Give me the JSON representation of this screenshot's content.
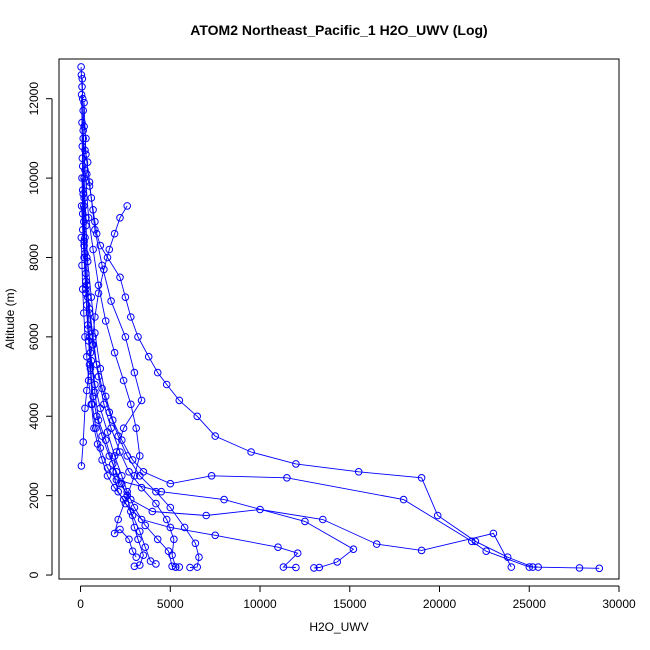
{
  "chart_data": {
    "type": "scatter",
    "title": "ATOM2 Northeast_Pacific_1 H2O_UWV (Log)",
    "xlabel": "H2O_UWV",
    "ylabel": "Altitude (m)",
    "xlim": [
      -1200,
      30000
    ],
    "ylim": [
      -100,
      13000
    ],
    "xticks": [
      0,
      5000,
      10000,
      15000,
      20000,
      25000,
      30000
    ],
    "yticks": [
      0,
      2000,
      4000,
      6000,
      8000,
      10000,
      12000
    ],
    "series": [
      {
        "values": [
          [
            30,
            12800
          ],
          [
            50,
            12600
          ],
          [
            80,
            12300
          ],
          [
            120,
            12000
          ],
          [
            150,
            11700
          ],
          [
            200,
            11300
          ],
          [
            300,
            11000
          ],
          [
            250,
            10700
          ],
          [
            400,
            10400
          ],
          [
            350,
            10100
          ],
          [
            500,
            9800
          ],
          [
            600,
            9500
          ],
          [
            700,
            9200
          ],
          [
            800,
            8900
          ],
          [
            900,
            8600
          ],
          [
            1100,
            8300
          ],
          [
            1500,
            8000
          ],
          [
            2200,
            7500
          ],
          [
            2500,
            7000
          ],
          [
            2800,
            6500
          ],
          [
            3200,
            6000
          ],
          [
            3800,
            5500
          ],
          [
            4300,
            5100
          ],
          [
            4800,
            4800
          ],
          [
            5500,
            4400
          ],
          [
            6500,
            4000
          ],
          [
            7500,
            3500
          ],
          [
            9500,
            3100
          ],
          [
            12000,
            2800
          ],
          [
            15500,
            2600
          ],
          [
            19000,
            2450
          ],
          [
            19900,
            1500
          ],
          [
            22000,
            850
          ],
          [
            23800,
            450
          ],
          [
            25200,
            200
          ],
          [
            27800,
            180
          ],
          [
            28900,
            170
          ]
        ]
      },
      {
        "values": [
          [
            100,
            12500
          ],
          [
            150,
            11000
          ],
          [
            200,
            10000
          ],
          [
            300,
            9000
          ],
          [
            350,
            8000
          ],
          [
            400,
            7000
          ],
          [
            500,
            6000
          ],
          [
            600,
            5000
          ],
          [
            700,
            4500
          ],
          [
            900,
            4000
          ],
          [
            1200,
            3500
          ],
          [
            1600,
            3000
          ],
          [
            2000,
            2600
          ],
          [
            2300,
            2300
          ],
          [
            2600,
            2000
          ],
          [
            2800,
            1600
          ],
          [
            3000,
            1200
          ],
          [
            3200,
            900
          ],
          [
            3500,
            500
          ],
          [
            3300,
            250
          ],
          [
            3000,
            220
          ]
        ]
      },
      {
        "values": [
          [
            60,
            12100
          ],
          [
            100,
            10800
          ],
          [
            150,
            9600
          ],
          [
            200,
            8400
          ],
          [
            300,
            7200
          ],
          [
            400,
            6200
          ],
          [
            600,
            5400
          ],
          [
            800,
            4600
          ],
          [
            1000,
            3900
          ],
          [
            1400,
            3400
          ],
          [
            1800,
            2800
          ],
          [
            2200,
            2300
          ],
          [
            2800,
            1900
          ],
          [
            4000,
            1600
          ],
          [
            7000,
            1500
          ],
          [
            10000,
            1650
          ],
          [
            13500,
            1400
          ],
          [
            16500,
            780
          ],
          [
            19000,
            620
          ],
          [
            23000,
            1050
          ],
          [
            24000,
            200
          ]
        ]
      },
      {
        "values": [
          [
            80,
            11400
          ],
          [
            120,
            10300
          ],
          [
            180,
            9300
          ],
          [
            250,
            8500
          ],
          [
            300,
            7600
          ],
          [
            350,
            6800
          ],
          [
            450,
            5900
          ],
          [
            550,
            5200
          ],
          [
            650,
            4300
          ],
          [
            850,
            3700
          ],
          [
            1100,
            3200
          ],
          [
            1500,
            2700
          ],
          [
            2000,
            2400
          ],
          [
            4500,
            2100
          ],
          [
            8000,
            1900
          ],
          [
            12500,
            1350
          ],
          [
            15200,
            650
          ],
          [
            14300,
            330
          ],
          [
            13300,
            190
          ],
          [
            13000,
            180
          ]
        ]
      },
      {
        "values": [
          [
            200,
            11900
          ],
          [
            300,
            10600
          ],
          [
            500,
            9900
          ],
          [
            800,
            8700
          ],
          [
            1200,
            7800
          ],
          [
            1700,
            6900
          ],
          [
            2500,
            6000
          ],
          [
            3000,
            5100
          ],
          [
            3400,
            4400
          ],
          [
            2400,
            3700
          ],
          [
            2000,
            3100
          ],
          [
            1800,
            2600
          ],
          [
            2100,
            2100
          ],
          [
            2500,
            1800
          ],
          [
            3400,
            1400
          ],
          [
            5000,
            1200
          ],
          [
            7500,
            1000
          ],
          [
            11000,
            700
          ],
          [
            12100,
            550
          ],
          [
            11300,
            200
          ],
          [
            12000,
            190
          ]
        ]
      },
      {
        "values": [
          [
            150,
            11200
          ],
          [
            250,
            10200
          ],
          [
            450,
            9000
          ],
          [
            700,
            8200
          ],
          [
            1000,
            7300
          ],
          [
            1400,
            6400
          ],
          [
            1900,
            5600
          ],
          [
            2400,
            4900
          ],
          [
            2800,
            4300
          ],
          [
            3100,
            3700
          ],
          [
            3300,
            3000
          ],
          [
            3000,
            2500
          ],
          [
            2600,
            2000
          ],
          [
            2100,
            1400
          ],
          [
            1900,
            1050
          ],
          [
            2200,
            1150
          ],
          [
            2700,
            900
          ],
          [
            2900,
            600
          ],
          [
            3100,
            450
          ]
        ]
      },
      {
        "values": [
          [
            100,
            10500
          ],
          [
            200,
            9500
          ],
          [
            300,
            8800
          ],
          [
            400,
            7900
          ],
          [
            600,
            7000
          ],
          [
            800,
            6100
          ],
          [
            1100,
            5200
          ],
          [
            1400,
            4500
          ],
          [
            1800,
            3900
          ],
          [
            2300,
            3400
          ],
          [
            2900,
            2900
          ],
          [
            3500,
            2600
          ],
          [
            5000,
            2300
          ],
          [
            7300,
            2500
          ],
          [
            11500,
            2450
          ],
          [
            18000,
            1900
          ],
          [
            21800,
            850
          ],
          [
            22600,
            600
          ],
          [
            25000,
            200
          ],
          [
            25500,
            200
          ]
        ]
      },
      {
        "values": [
          [
            80,
            10000
          ],
          [
            120,
            9100
          ],
          [
            200,
            8300
          ],
          [
            300,
            7400
          ],
          [
            500,
            6600
          ],
          [
            700,
            5800
          ],
          [
            1000,
            5000
          ],
          [
            1300,
            4300
          ],
          [
            1700,
            3700
          ],
          [
            2200,
            3100
          ],
          [
            2700,
            2600
          ],
          [
            3400,
            2200
          ],
          [
            4200,
            1800
          ],
          [
            4800,
            1400
          ],
          [
            5200,
            900
          ],
          [
            5100,
            500
          ],
          [
            5300,
            200
          ],
          [
            5500,
            200
          ]
        ]
      },
      {
        "values": [
          [
            120,
            9700
          ],
          [
            180,
            8900
          ],
          [
            250,
            8100
          ],
          [
            350,
            7300
          ],
          [
            500,
            6700
          ],
          [
            700,
            6000
          ],
          [
            900,
            5300
          ],
          [
            1200,
            4700
          ],
          [
            1600,
            4100
          ],
          [
            2100,
            3500
          ],
          [
            2600,
            3000
          ],
          [
            3300,
            2500
          ],
          [
            4200,
            2100
          ],
          [
            5000,
            1700
          ],
          [
            5800,
            1200
          ],
          [
            6400,
            800
          ],
          [
            6600,
            450
          ],
          [
            6500,
            200
          ],
          [
            6100,
            190
          ]
        ]
      },
      {
        "values": [
          [
            60,
            9300
          ],
          [
            120,
            8700
          ],
          [
            200,
            8000
          ],
          [
            300,
            7100
          ],
          [
            400,
            6300
          ],
          [
            550,
            5600
          ],
          [
            800,
            4800
          ],
          [
            1100,
            4200
          ],
          [
            1500,
            3600
          ],
          [
            1900,
            3000
          ],
          [
            2300,
            2500
          ],
          [
            2600,
            2100
          ],
          [
            3000,
            1700
          ],
          [
            3600,
            1250
          ],
          [
            4300,
            900
          ],
          [
            4900,
            600
          ],
          [
            5100,
            220
          ],
          [
            5300,
            200
          ]
        ]
      },
      {
        "values": [
          [
            40,
            8500
          ],
          [
            80,
            7800
          ],
          [
            120,
            7200
          ],
          [
            180,
            6600
          ],
          [
            250,
            6000
          ],
          [
            350,
            5500
          ],
          [
            450,
            4900
          ],
          [
            600,
            4300
          ],
          [
            750,
            3700
          ],
          [
            950,
            3300
          ],
          [
            1200,
            2900
          ],
          [
            1500,
            2500
          ],
          [
            1900,
            2200
          ],
          [
            2400,
            1900
          ],
          [
            2900,
            1500
          ],
          [
            3300,
            1100
          ],
          [
            3600,
            700
          ],
          [
            3900,
            350
          ],
          [
            4200,
            280
          ]
        ]
      },
      {
        "values": [
          [
            50,
            2750
          ],
          [
            150,
            3350
          ],
          [
            250,
            4200
          ],
          [
            350,
            4650
          ],
          [
            500,
            5300
          ],
          [
            650,
            5800
          ],
          [
            800,
            6500
          ],
          [
            1000,
            7100
          ],
          [
            1300,
            7700
          ],
          [
            1600,
            8200
          ],
          [
            1900,
            8600
          ],
          [
            2200,
            9000
          ],
          [
            2600,
            9300
          ]
        ]
      }
    ]
  }
}
